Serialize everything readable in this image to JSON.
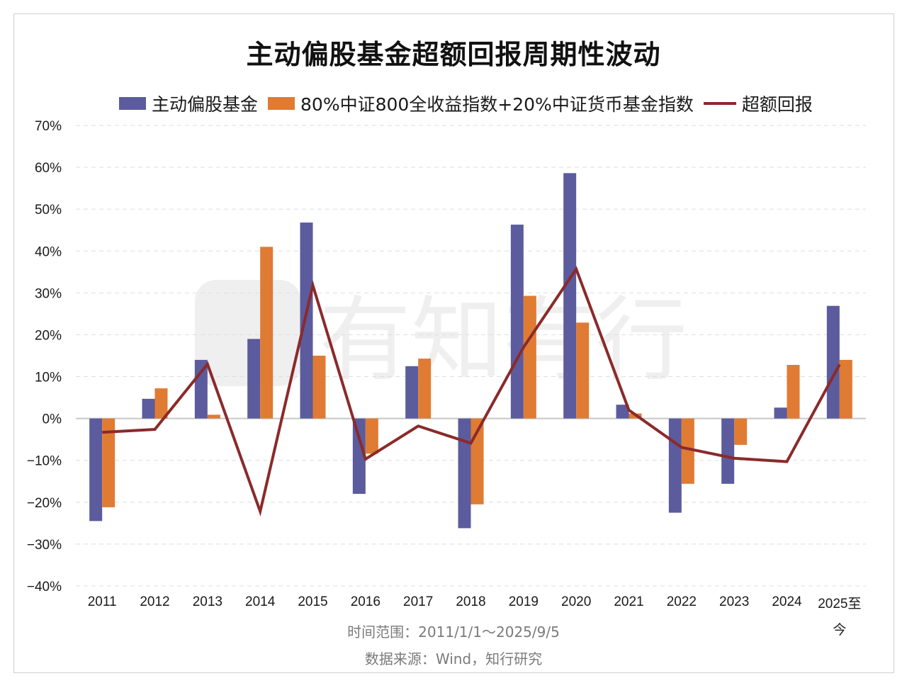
{
  "chart_data": {
    "type": "bar",
    "title": "主动偏股基金超额回报周期性波动",
    "categories": [
      "2011",
      "2012",
      "2013",
      "2014",
      "2015",
      "2016",
      "2017",
      "2018",
      "2019",
      "2020",
      "2021",
      "2022",
      "2023",
      "2024",
      "2025至今"
    ],
    "series": [
      {
        "name": "主动偏股基金",
        "type": "bar",
        "color": "#5b5b9e",
        "values": [
          -24.5,
          4.7,
          14.0,
          19.0,
          46.8,
          -18.0,
          12.5,
          -26.2,
          46.3,
          58.6,
          3.3,
          -22.5,
          -15.6,
          2.6,
          26.9
        ]
      },
      {
        "name": "80%中证800全收益指数+20%中证货币基金指数",
        "type": "bar",
        "color": "#e07b33",
        "values": [
          -21.2,
          7.2,
          0.9,
          41.0,
          15.0,
          -8.4,
          14.3,
          -20.5,
          29.3,
          22.9,
          1.2,
          -15.6,
          -6.3,
          12.8,
          14.0
        ]
      },
      {
        "name": "超额回报",
        "type": "line",
        "color": "#8b2a2a",
        "values": [
          -3.3,
          -2.6,
          13.0,
          -22.2,
          31.8,
          -9.7,
          -1.8,
          -5.9,
          17.0,
          35.7,
          2.0,
          -6.9,
          -9.5,
          -10.3,
          12.9
        ]
      }
    ],
    "ylim": [
      -40,
      70
    ],
    "yticks": [
      "70%",
      "60%",
      "50%",
      "40%",
      "30%",
      "20%",
      "10%",
      "0%",
      "−10%",
      "−20%",
      "−30%",
      "−40%"
    ],
    "ytick_values": [
      70,
      60,
      50,
      40,
      30,
      20,
      10,
      0,
      -10,
      -20,
      -30,
      -40
    ],
    "xlabel": "",
    "ylabel": "",
    "grid": true,
    "legend_position": "top"
  },
  "notes": {
    "range": "时间范围：2011/1/1～2025/9/5",
    "source": "数据来源：Wind，知行研究"
  }
}
